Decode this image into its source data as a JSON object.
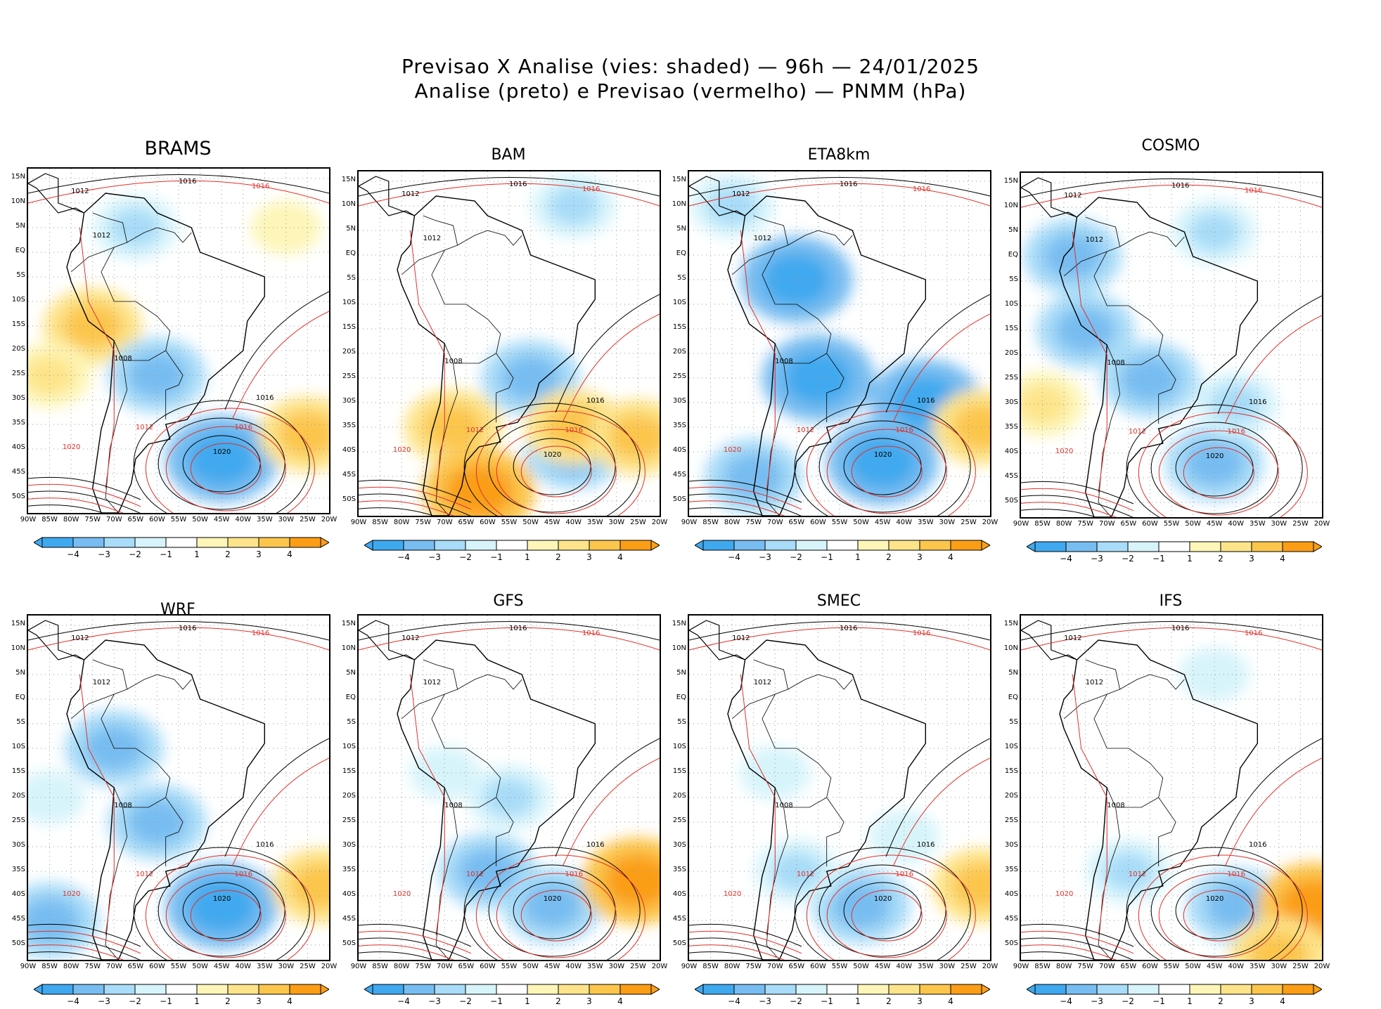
{
  "title": {
    "line1": "Previsao X Analise (vies: shaded) — 96h — 24/01/2025",
    "line2": "Analise (preto) e Previsao (vermelho) — PNMM (hPa)"
  },
  "colors": {
    "neg4": "#3fa9ef",
    "neg3": "#78bdf1",
    "neg2": "#a8dcf8",
    "neg1": "#d7f4fb",
    "pos1": "#fdf6b8",
    "pos2": "#fde48a",
    "pos3": "#fcc64d",
    "pos4": "#fb9e16",
    "analysis_contour": "#000000",
    "forecast_contour": "#e0302a",
    "grid": "#9a9a9a"
  },
  "models": [
    {
      "name": "BRAMS",
      "label_1012": "1012",
      "label_1016": "1016",
      "label_1008": "1008",
      "label_1020": "1020"
    },
    {
      "name": "BAM",
      "label_1012": "1012",
      "label_1016": "1016",
      "label_1008": "1008",
      "label_1020": "1020"
    },
    {
      "name": "ETA8km",
      "label_1012": "1012",
      "label_1016": "1016",
      "label_1008": "1008",
      "label_1020": "1020"
    },
    {
      "name": "COSMO",
      "label_1012": "1012",
      "label_1016": "1016",
      "label_1008": "1008",
      "label_1020": "1020"
    },
    {
      "name": "WRF",
      "label_1012": "1012",
      "label_1016": "1016",
      "label_1008": "1008",
      "label_1020": "1020"
    },
    {
      "name": "GFS",
      "label_1012": "1012",
      "label_1016": "1016",
      "label_1008": "1008",
      "label_1020": "1020"
    },
    {
      "name": "SMEC",
      "label_1012": "1012",
      "label_1016": "1016",
      "label_1008": "1008",
      "label_1020": "1020"
    },
    {
      "name": "IFS",
      "label_1012": "1012",
      "label_1016": "1016",
      "label_1008": "1008",
      "label_1020": "1020"
    }
  ],
  "lat_labels": [
    "15N",
    "10N",
    "5N",
    "EQ",
    "5S",
    "10S",
    "15S",
    "20S",
    "25S",
    "30S",
    "35S",
    "40S",
    "45S",
    "50S"
  ],
  "lon_labels": [
    "90W",
    "85W",
    "80W",
    "75W",
    "70W",
    "65W",
    "60W",
    "55W",
    "50W",
    "45W",
    "40W",
    "35W",
    "30W",
    "25W",
    "20W"
  ],
  "colorbar_labels": [
    "−4",
    "−3",
    "−2",
    "−1",
    "1",
    "2",
    "3",
    "4"
  ],
  "bias_patterns": [
    {
      "model": "BRAMS",
      "features": [
        {
          "lon": -75,
          "lat": -15,
          "v": 3
        },
        {
          "lon": -85,
          "lat": -25,
          "v": 2
        },
        {
          "lon": -30,
          "lat": 5,
          "v": 1
        },
        {
          "lon": -45,
          "lat": -42,
          "v": -4
        },
        {
          "lon": -60,
          "lat": -25,
          "v": -3
        },
        {
          "lon": -25,
          "lat": -37,
          "v": 3
        },
        {
          "lon": -65,
          "lat": 5,
          "v": -2
        }
      ]
    },
    {
      "model": "BAM",
      "features": [
        {
          "lon": -68,
          "lat": -35,
          "v": 3
        },
        {
          "lon": -62,
          "lat": -48,
          "v": 4
        },
        {
          "lon": -50,
          "lat": -25,
          "v": -3
        },
        {
          "lon": -40,
          "lat": -40,
          "v": -3
        },
        {
          "lon": -40,
          "lat": -35,
          "v": 3
        },
        {
          "lon": -25,
          "lat": -37,
          "v": 3
        },
        {
          "lon": -40,
          "lat": 10,
          "v": -2
        }
      ]
    },
    {
      "model": "ETA8km",
      "features": [
        {
          "lon": -65,
          "lat": -5,
          "v": -4
        },
        {
          "lon": -60,
          "lat": -25,
          "v": -4
        },
        {
          "lon": -75,
          "lat": -45,
          "v": -3
        },
        {
          "lon": -45,
          "lat": -42,
          "v": -4
        },
        {
          "lon": -35,
          "lat": -30,
          "v": -4
        },
        {
          "lon": -22,
          "lat": -35,
          "v": 3
        },
        {
          "lon": -80,
          "lat": 10,
          "v": -2
        }
      ]
    },
    {
      "model": "COSMO",
      "features": [
        {
          "lon": -75,
          "lat": -15,
          "v": -3
        },
        {
          "lon": -78,
          "lat": 0,
          "v": -3
        },
        {
          "lon": -60,
          "lat": -25,
          "v": -3
        },
        {
          "lon": -45,
          "lat": -42,
          "v": -3
        },
        {
          "lon": -85,
          "lat": -30,
          "v": 2
        },
        {
          "lon": -40,
          "lat": -30,
          "v": -2
        },
        {
          "lon": -45,
          "lat": 5,
          "v": -2
        }
      ]
    },
    {
      "model": "WRF",
      "features": [
        {
          "lon": -70,
          "lat": -10,
          "v": -3
        },
        {
          "lon": -85,
          "lat": -45,
          "v": -3
        },
        {
          "lon": -45,
          "lat": -42,
          "v": -4
        },
        {
          "lon": -60,
          "lat": -25,
          "v": -3
        },
        {
          "lon": -22,
          "lat": -38,
          "v": 3
        },
        {
          "lon": -85,
          "lat": -20,
          "v": -1
        }
      ]
    },
    {
      "model": "GFS",
      "features": [
        {
          "lon": -60,
          "lat": -35,
          "v": -3
        },
        {
          "lon": -45,
          "lat": -42,
          "v": -3
        },
        {
          "lon": -25,
          "lat": -37,
          "v": 4
        },
        {
          "lon": -55,
          "lat": -20,
          "v": -2
        },
        {
          "lon": -70,
          "lat": -15,
          "v": -1
        }
      ]
    },
    {
      "model": "SMEC",
      "features": [
        {
          "lon": -50,
          "lat": -42,
          "v": -3
        },
        {
          "lon": -65,
          "lat": -35,
          "v": -2
        },
        {
          "lon": -22,
          "lat": -38,
          "v": 3
        },
        {
          "lon": -70,
          "lat": -15,
          "v": -1
        },
        {
          "lon": -40,
          "lat": -28,
          "v": -1
        }
      ]
    },
    {
      "model": "IFS",
      "features": [
        {
          "lon": -40,
          "lat": -42,
          "v": -3
        },
        {
          "lon": -65,
          "lat": -35,
          "v": -2
        },
        {
          "lon": -22,
          "lat": -42,
          "v": 4
        },
        {
          "lon": -30,
          "lat": -52,
          "v": 3
        },
        {
          "lon": -45,
          "lat": 5,
          "v": -1
        }
      ]
    }
  ]
}
